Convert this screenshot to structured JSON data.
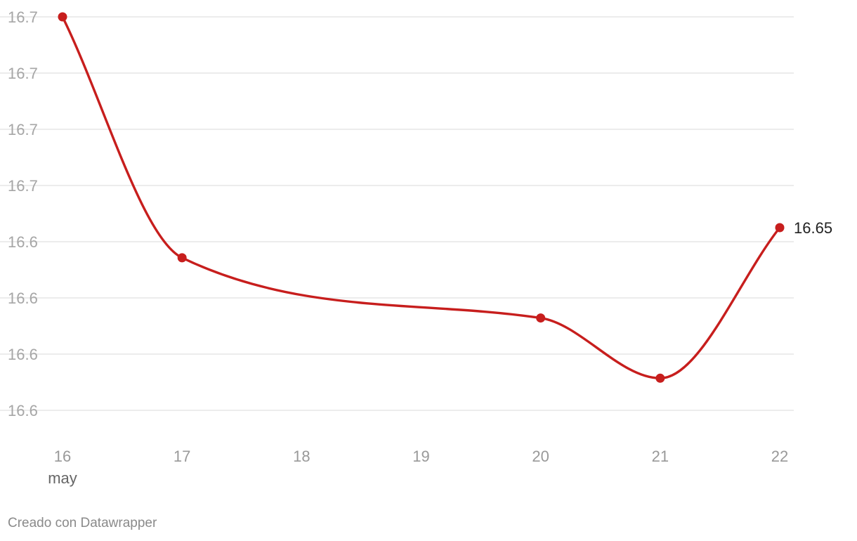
{
  "chart_data": {
    "type": "line",
    "x": [
      "16",
      "17",
      "18",
      "19",
      "20",
      "21",
      "22"
    ],
    "x_sublabel": "may",
    "y_tick_labels": [
      "16.7",
      "16.7",
      "16.7",
      "16.7",
      "16.6",
      "16.6",
      "16.6",
      "16.6"
    ],
    "series": [
      {
        "color": "#c71e1d",
        "points": [
          {
            "x": "16",
            "y": 16.72
          },
          {
            "x": "17",
            "y": 16.64
          },
          {
            "x": "20",
            "y": 16.62
          },
          {
            "x": "21",
            "y": 16.6
          },
          {
            "x": "22",
            "y": 16.65
          }
        ]
      }
    ],
    "end_label": "16.65",
    "ylim": [
      16.58,
      16.72
    ],
    "grid": true,
    "title": "",
    "xlabel": "",
    "ylabel": ""
  },
  "footer": {
    "credit": "Creado con Datawrapper"
  }
}
